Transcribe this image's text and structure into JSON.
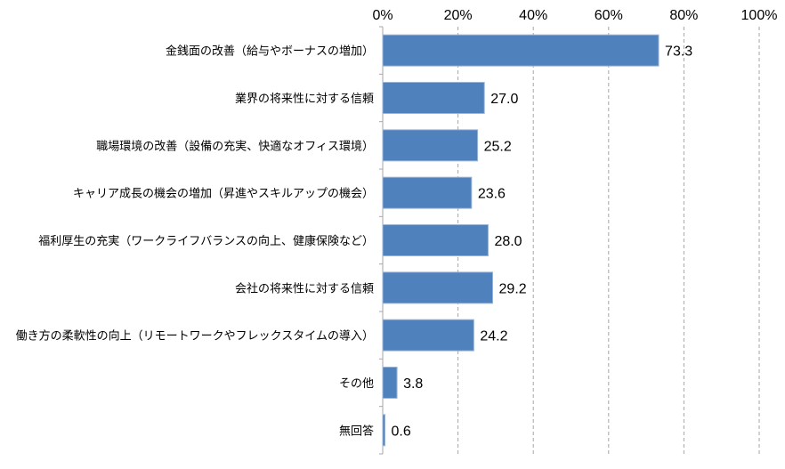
{
  "chart_data": {
    "type": "bar",
    "orientation": "horizontal",
    "categories": [
      "金銭面の改善（給与やボーナスの増加）",
      "業界の将来性に対する信頼",
      "職場環境の改善（設備の充実、快適なオフィス環境）",
      "キャリア成長の機会の増加（昇進やスキルアップの機会）",
      "福利厚生の充実（ワークライフバランスの向上、健康保険など）",
      "会社の将来性に対する信頼",
      "働き方の柔軟性の向上（リモートワークやフレックスタイムの導入）",
      "その他",
      "無回答"
    ],
    "values": [
      73.3,
      27.0,
      25.2,
      23.6,
      28.0,
      29.2,
      24.2,
      3.8,
      0.6
    ],
    "value_labels": [
      "73.3",
      "27.0",
      "25.2",
      "23.6",
      "28.0",
      "29.2",
      "24.2",
      "3.8",
      "0.6"
    ],
    "xlim": [
      0,
      100
    ],
    "x_ticks": [
      0,
      20,
      40,
      60,
      80,
      100
    ],
    "x_tick_labels": [
      "0%",
      "20%",
      "40%",
      "60%",
      "80%",
      "100%"
    ],
    "axis_position": "top",
    "grid": true,
    "title": "",
    "xlabel": "",
    "ylabel": "",
    "bar_color": "#4f81bd",
    "bar_border_color": "#9bb5d8",
    "grid_color": "#a6a6a6"
  }
}
